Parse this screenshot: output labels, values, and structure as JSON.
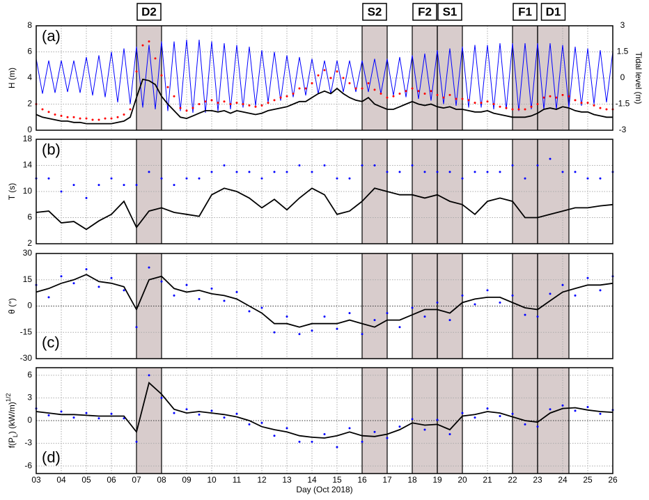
{
  "chart_data": [
    {
      "type": "line",
      "panel_label": "(a)",
      "ylabel": "H (m)",
      "y2label": "Tidal level (m)",
      "xlim": [
        3,
        26
      ],
      "xticks": [
        3,
        4,
        5,
        6,
        7,
        8,
        9,
        10,
        11,
        12,
        13,
        14,
        15,
        16,
        17,
        18,
        19,
        20,
        21,
        22,
        23,
        24,
        25,
        26
      ],
      "ylim": [
        0,
        8
      ],
      "yticks": [
        0,
        2,
        4,
        6,
        8
      ],
      "y2lim": [
        -3,
        3
      ],
      "y2ticks": [
        -3,
        -1.5,
        0,
        1.5,
        3
      ],
      "grid": true,
      "events": [
        {
          "label": "D2",
          "x": [
            7,
            8
          ]
        },
        {
          "label": "S2",
          "x": [
            16,
            17
          ]
        },
        {
          "label": "F2",
          "x": [
            18,
            19
          ]
        },
        {
          "label": "S1",
          "x": [
            19,
            20
          ]
        },
        {
          "label": "F1",
          "x": [
            22,
            23
          ]
        },
        {
          "label": "D1",
          "x": [
            23,
            24.25
          ]
        }
      ],
      "x": [
        3,
        3.25,
        3.5,
        3.75,
        4,
        4.25,
        4.5,
        4.75,
        5,
        5.25,
        5.5,
        5.75,
        6,
        6.25,
        6.5,
        6.75,
        7,
        7.25,
        7.5,
        7.75,
        8,
        8.25,
        8.5,
        8.75,
        9,
        9.25,
        9.5,
        9.75,
        10,
        10.25,
        10.5,
        10.75,
        11,
        11.25,
        11.5,
        11.75,
        12,
        12.25,
        12.5,
        12.75,
        13,
        13.25,
        13.5,
        13.75,
        14,
        14.25,
        14.5,
        14.75,
        15,
        15.25,
        15.5,
        15.75,
        16,
        16.25,
        16.5,
        16.75,
        17,
        17.25,
        17.5,
        17.75,
        18,
        18.25,
        18.5,
        18.75,
        19,
        19.25,
        19.5,
        19.75,
        20,
        20.25,
        20.5,
        20.75,
        21,
        21.25,
        21.5,
        21.75,
        22,
        22.25,
        22.5,
        22.75,
        23,
        23.25,
        23.5,
        23.75,
        24,
        24.25,
        24.5,
        24.75,
        25,
        25.25,
        25.5,
        25.75,
        26
      ],
      "series": [
        {
          "mode": "line",
          "axis": "y2",
          "color": "#0000ff",
          "values": [
            1.1,
            -0.9,
            1.0,
            -0.85,
            1.0,
            -0.8,
            1.0,
            -0.85,
            1.2,
            -1.0,
            1.3,
            -1.1,
            1.5,
            -1.4,
            1.7,
            -1.5,
            1.8,
            -1.7,
            1.9,
            -1.8,
            2.1,
            -1.9,
            2.1,
            -1.9,
            2.2,
            -2.0,
            2.2,
            -2.0,
            2.1,
            -1.9,
            2.0,
            -1.8,
            1.9,
            -1.7,
            1.8,
            -1.6,
            1.6,
            -1.4,
            1.5,
            -1.3,
            1.3,
            -1.1,
            1.2,
            -1.0,
            1.1,
            -0.9,
            1.0,
            -0.9,
            1.0,
            -0.8,
            1.0,
            -0.8,
            1.0,
            -0.8,
            1.1,
            -0.9,
            1.1,
            -1.0,
            1.2,
            -1.1,
            1.3,
            -1.2,
            1.4,
            -1.3,
            1.6,
            -1.5,
            1.7,
            -1.6,
            1.8,
            -1.7,
            1.9,
            -1.7,
            1.9,
            -1.8,
            2.0,
            -1.8,
            2.0,
            -1.9,
            2.0,
            -1.8,
            2.0,
            -1.8,
            2.0,
            -1.8,
            1.9,
            -1.7,
            1.8,
            -1.6,
            1.7,
            -1.5,
            1.6,
            -1.4,
            1.5
          ]
        },
        {
          "mode": "dots",
          "color": "#ff0000",
          "values": [
            2.0,
            1.6,
            1.4,
            1.2,
            1.1,
            1.0,
            1.0,
            0.9,
            0.9,
            0.8,
            0.8,
            0.9,
            0.9,
            1.0,
            1.2,
            1.6,
            4.5,
            6.5,
            6.8,
            5.5,
            4.2,
            3.3,
            2.6,
            1.7,
            1.5,
            1.7,
            2.0,
            2.2,
            2.3,
            2.1,
            2.2,
            2.0,
            2.1,
            2.0,
            1.9,
            1.8,
            1.9,
            2.1,
            2.3,
            2.5,
            2.6,
            2.8,
            3.2,
            3.2,
            3.6,
            4.2,
            4.6,
            4.0,
            4.5,
            4.0,
            3.6,
            3.2,
            3.2,
            3.6,
            3.1,
            2.8,
            2.5,
            2.6,
            2.8,
            3.0,
            3.2,
            3.0,
            2.8,
            3.0,
            2.7,
            2.5,
            2.7,
            2.4,
            2.4,
            2.3,
            2.1,
            2.1,
            2.2,
            2.0,
            1.8,
            1.7,
            1.6,
            1.6,
            1.6,
            1.8,
            2.0,
            2.5,
            2.6,
            2.5,
            2.7,
            2.6,
            2.3,
            2.1,
            2.1,
            1.9,
            1.7,
            1.6,
            1.6
          ]
        },
        {
          "mode": "line",
          "color": "#000000",
          "values": [
            1.2,
            1.0,
            0.9,
            0.8,
            0.7,
            0.7,
            0.6,
            0.6,
            0.5,
            0.5,
            0.5,
            0.5,
            0.5,
            0.6,
            0.7,
            1.0,
            2.5,
            3.9,
            3.8,
            3.5,
            2.6,
            2.0,
            1.5,
            1.0,
            0.9,
            1.1,
            1.3,
            1.5,
            1.5,
            1.4,
            1.5,
            1.3,
            1.5,
            1.4,
            1.3,
            1.2,
            1.3,
            1.5,
            1.6,
            1.7,
            1.8,
            2.0,
            2.2,
            2.2,
            2.5,
            2.8,
            3.0,
            2.8,
            3.2,
            2.8,
            2.5,
            2.3,
            2.2,
            2.5,
            2.0,
            1.8,
            1.6,
            1.6,
            1.8,
            2.0,
            2.2,
            2.0,
            1.9,
            2.0,
            1.8,
            1.7,
            1.8,
            1.6,
            1.6,
            1.5,
            1.4,
            1.4,
            1.5,
            1.3,
            1.2,
            1.1,
            1.0,
            1.0,
            1.0,
            1.1,
            1.3,
            1.6,
            1.7,
            1.6,
            1.8,
            1.7,
            1.5,
            1.4,
            1.4,
            1.2,
            1.1,
            1.0,
            1.0
          ]
        }
      ]
    },
    {
      "type": "line",
      "panel_label": "(b)",
      "ylabel": "T (s)",
      "xlim": [
        3,
        26
      ],
      "xticks": [
        3,
        4,
        5,
        6,
        7,
        8,
        9,
        10,
        11,
        12,
        13,
        14,
        15,
        16,
        17,
        18,
        19,
        20,
        21,
        22,
        23,
        24,
        25,
        26
      ],
      "ylim": [
        2,
        18
      ],
      "yticks": [
        2,
        6,
        10,
        14,
        18
      ],
      "grid": true,
      "x": [
        3,
        3.5,
        4,
        4.5,
        5,
        5.5,
        6,
        6.5,
        7,
        7.5,
        8,
        8.5,
        9,
        9.5,
        10,
        10.5,
        11,
        11.5,
        12,
        12.5,
        13,
        13.5,
        14,
        14.5,
        15,
        15.5,
        16,
        16.5,
        17,
        17.5,
        18,
        18.5,
        19,
        19.5,
        20,
        20.5,
        21,
        21.5,
        22,
        22.5,
        23,
        23.5,
        24,
        24.5,
        25,
        25.5,
        26
      ],
      "series": [
        {
          "mode": "dots",
          "color": "#0000ff",
          "values": [
            12,
            12,
            10,
            11,
            9,
            11,
            12,
            11,
            11,
            13,
            12,
            11,
            12,
            12,
            13,
            14,
            13,
            13,
            12,
            13,
            13,
            14,
            13,
            14,
            12,
            12,
            14,
            14,
            13,
            13,
            14,
            13,
            13,
            13,
            12,
            13,
            13,
            13,
            14,
            12,
            14,
            15,
            13,
            13,
            12,
            12,
            13
          ]
        },
        {
          "mode": "line",
          "color": "#000000",
          "values": [
            6.8,
            7.0,
            5.2,
            5.4,
            4.2,
            5.5,
            6.5,
            8.5,
            4.5,
            7.0,
            7.5,
            6.8,
            6.5,
            6.2,
            9.5,
            10.5,
            10.0,
            9.0,
            7.5,
            8.8,
            7.2,
            9.0,
            10.5,
            9.5,
            6.5,
            7.0,
            8.5,
            10.5,
            10.0,
            9.5,
            9.5,
            9.0,
            9.5,
            8.5,
            8.0,
            6.5,
            8.5,
            9.0,
            8.5,
            6.0,
            6.0,
            6.5,
            7.0,
            7.5,
            7.5,
            7.8,
            8.0
          ]
        }
      ]
    },
    {
      "type": "line",
      "panel_label": "(c)",
      "ylabel": "θ (°)",
      "xlim": [
        3,
        26
      ],
      "xticks": [
        3,
        4,
        5,
        6,
        7,
        8,
        9,
        10,
        11,
        12,
        13,
        14,
        15,
        16,
        17,
        18,
        19,
        20,
        21,
        22,
        23,
        24,
        25,
        26
      ],
      "ylim": [
        -30,
        30
      ],
      "yticks": [
        -30,
        -15,
        0,
        15,
        30
      ],
      "grid": true,
      "x": [
        3,
        3.5,
        4,
        4.5,
        5,
        5.5,
        6,
        6.5,
        7,
        7.5,
        8,
        8.5,
        9,
        9.5,
        10,
        10.5,
        11,
        11.5,
        12,
        12.5,
        13,
        13.5,
        14,
        14.5,
        15,
        15.5,
        16,
        16.5,
        17,
        17.5,
        18,
        18.5,
        19,
        19.5,
        20,
        20.5,
        21,
        21.5,
        22,
        22.5,
        23,
        23.5,
        24,
        24.5,
        25,
        25.5,
        26
      ],
      "series": [
        {
          "mode": "dots",
          "color": "#0000ff",
          "values": [
            12,
            5,
            17,
            13,
            21,
            11,
            16,
            9,
            -12,
            22,
            14,
            6,
            12,
            4,
            10,
            3,
            8,
            -3,
            -1,
            -15,
            -6,
            -16,
            -14,
            -6,
            -13,
            -4,
            -16,
            -8,
            -4,
            -12,
            -1,
            -6,
            2,
            -8,
            6,
            1,
            9,
            2,
            6,
            -5,
            -6,
            7,
            12,
            6,
            16,
            9,
            17
          ]
        },
        {
          "mode": "line",
          "color": "#000000",
          "values": [
            8,
            10,
            13,
            15,
            18,
            14,
            13,
            11,
            -2,
            15,
            17,
            10,
            8,
            9,
            7,
            6,
            4,
            0,
            -4,
            -10,
            -10,
            -12,
            -10,
            -10,
            -10,
            -8,
            -10,
            -12,
            -8,
            -8,
            -5,
            -2,
            -2,
            -4,
            2,
            4,
            5,
            5,
            2,
            -1,
            -2,
            3,
            8,
            10,
            12,
            12,
            13
          ]
        }
      ]
    },
    {
      "type": "line",
      "panel_label": "(d)",
      "ylabel": [
        {
          "text": "f(P"
        },
        {
          "text": "L",
          "script": "sub"
        },
        {
          "text": ") (kW/m)"
        },
        {
          "text": "1/2",
          "script": "super"
        }
      ],
      "xlabel": "Day (Oct 2018)",
      "xlim": [
        3,
        26
      ],
      "xticks": [
        {
          "value": 3,
          "label": "03"
        },
        {
          "value": 4,
          "label": "04"
        },
        {
          "value": 5,
          "label": "05"
        },
        {
          "value": 6,
          "label": "06"
        },
        {
          "value": 7,
          "label": "07"
        },
        {
          "value": 8,
          "label": "08"
        },
        {
          "value": 9,
          "label": "09"
        },
        10,
        11,
        12,
        13,
        14,
        15,
        16,
        17,
        18,
        19,
        20,
        21,
        22,
        23,
        24,
        25,
        26
      ],
      "ylim": [
        -7,
        7
      ],
      "yticks": [
        -6,
        -3,
        0,
        3,
        6
      ],
      "grid": true,
      "x": [
        3,
        3.5,
        4,
        4.5,
        5,
        5.5,
        6,
        6.5,
        7,
        7.5,
        8,
        8.5,
        9,
        9.5,
        10,
        10.5,
        11,
        11.5,
        12,
        12.5,
        13,
        13.5,
        14,
        14.5,
        15,
        15.5,
        16,
        16.5,
        17,
        17.5,
        18,
        18.5,
        19,
        19.5,
        20,
        20.5,
        21,
        21.5,
        22,
        22.5,
        23,
        23.5,
        24,
        24.5,
        25,
        25.5,
        26
      ],
      "series": [
        {
          "mode": "dots",
          "color": "#0000ff",
          "values": [
            1.6,
            0.7,
            1.2,
            0.4,
            1.0,
            0.3,
            0.9,
            0.3,
            -2.8,
            6.0,
            3.0,
            1.0,
            1.5,
            0.8,
            1.3,
            0.4,
            0.9,
            -0.5,
            -0.3,
            -2.0,
            -1.0,
            -2.8,
            -2.8,
            -1.8,
            -3.5,
            -1.0,
            -2.8,
            -1.5,
            -2.3,
            -0.8,
            0.2,
            -1.2,
            0.1,
            -1.8,
            1.0,
            0.4,
            1.6,
            0.6,
            0.9,
            -0.5,
            -0.8,
            1.5,
            2.0,
            1.3,
            1.8,
            0.9,
            1.4
          ]
        },
        {
          "mode": "line",
          "color": "#000000",
          "values": [
            1.2,
            1.0,
            0.8,
            0.8,
            0.7,
            0.6,
            0.6,
            0.6,
            -1.5,
            5.0,
            3.5,
            1.5,
            1.0,
            1.2,
            1.0,
            0.8,
            0.5,
            0.0,
            -0.8,
            -1.2,
            -1.5,
            -2.0,
            -2.2,
            -2.3,
            -2.0,
            -1.5,
            -2.0,
            -2.1,
            -1.8,
            -1.2,
            -0.3,
            -0.6,
            -0.5,
            -1.2,
            0.6,
            0.8,
            1.2,
            1.0,
            0.5,
            0.0,
            -0.2,
            1.0,
            1.6,
            1.7,
            1.4,
            1.2,
            1.1
          ]
        }
      ]
    }
  ]
}
